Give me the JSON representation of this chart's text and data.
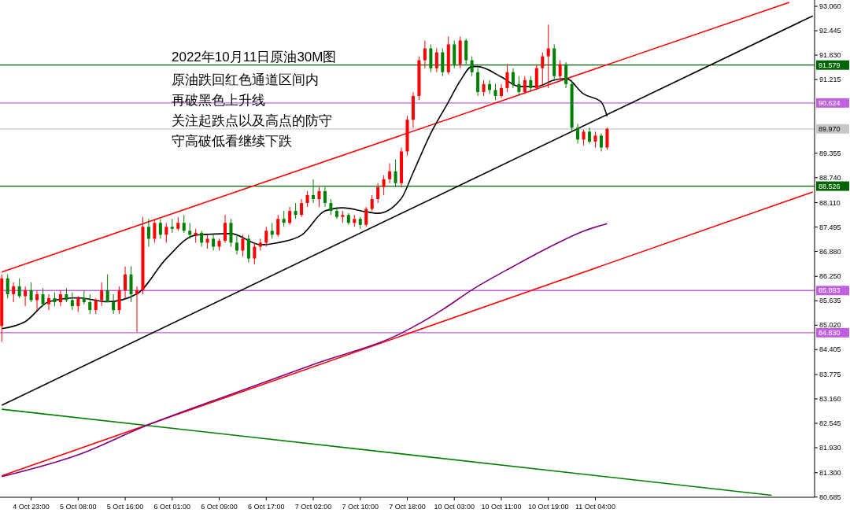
{
  "chart_data": {
    "type": "candlestick",
    "title": "2022年10月11日原油30M图",
    "annotations": [
      "原油跌回红色通道区间内",
      "再破黑色上升线",
      "关注起跌点以及高点的防守",
      "守高破低看继续下跌"
    ],
    "categories": [
      null,
      null,
      null,
      null,
      null,
      "4 Oct 23:00",
      null,
      null,
      null,
      null,
      null,
      null,
      null,
      "5 Oct 08:00",
      null,
      null,
      null,
      null,
      null,
      null,
      null,
      "5 Oct 16:00",
      null,
      null,
      null,
      null,
      null,
      null,
      null,
      "6 Oct 01:00",
      null,
      null,
      null,
      null,
      null,
      null,
      null,
      "6 Oct 09:00",
      null,
      null,
      null,
      null,
      null,
      null,
      null,
      "6 Oct 17:00",
      null,
      null,
      null,
      null,
      null,
      null,
      null,
      "7 Oct 02:00",
      null,
      null,
      null,
      null,
      null,
      null,
      null,
      "7 Oct 10:00",
      null,
      null,
      null,
      null,
      null,
      null,
      null,
      "7 Oct 18:00",
      null,
      null,
      null,
      null,
      null,
      null,
      null,
      "10 Oct 03:00",
      null,
      null,
      null,
      null,
      null,
      null,
      null,
      "10 Oct 11:00",
      null,
      null,
      null,
      null,
      null,
      null,
      null,
      "10 Oct 19:00",
      null,
      null,
      null,
      null,
      null,
      null,
      null,
      "11 Oct 04:00",
      null,
      null,
      null,
      null,
      null,
      null,
      null,
      null,
      null,
      null,
      null,
      null,
      null,
      null,
      null,
      null,
      null,
      null,
      null,
      null,
      null,
      null,
      null,
      null,
      null,
      null,
      null,
      null,
      null,
      null,
      null,
      null,
      null,
      null,
      null,
      null,
      null
    ],
    "colors": [
      "#ff0000",
      "#008000",
      "#ff0000",
      "#008000",
      "#ff0000",
      "#008000",
      "#ff0000",
      "#008000",
      "#ff0000",
      "#008000",
      "#ff0000",
      "#008000",
      "#008000",
      "#ff0000",
      "#008000",
      "#008000",
      "#ff0000",
      "#ff0000",
      "#008000",
      "#008000",
      "#ff0000",
      "#ff0000",
      "#008000",
      "#ff0000",
      "#ff0000",
      "#008000",
      "#ff0000",
      "#008000",
      "#ff0000",
      "#008000",
      "#ff0000",
      "#008000",
      "#008000",
      "#ff0000",
      "#008000",
      "#ff0000",
      "#008000",
      "#ff0000",
      "#ff0000",
      "#008000",
      "#008000",
      "#ff0000",
      "#008000",
      "#ff0000",
      "#ff0000",
      "#ff0000",
      "#008000",
      "#ff0000",
      "#008000",
      "#ff0000",
      "#008000",
      "#ff0000",
      "#ff0000",
      "#008000",
      "#ff0000",
      "#008000",
      "#008000",
      "#008000",
      "#ff0000",
      "#008000",
      "#ff0000",
      "#008000",
      "#ff0000",
      "#ff0000",
      "#ff0000",
      "#ff0000",
      "#ff0000",
      "#008000",
      "#ff0000",
      "#ff0000",
      "#ff0000",
      "#ff0000",
      "#ff0000",
      "#008000",
      "#ff0000",
      "#008000",
      "#ff0000",
      "#008000",
      "#ff0000",
      "#008000",
      "#008000",
      "#008000",
      "#ff0000",
      "#008000",
      "#008000",
      "#ff0000",
      "#ff0000",
      "#008000",
      "#008000",
      "#ff0000",
      "#008000",
      "#ff0000",
      "#ff0000",
      "#ff0000",
      "#008000",
      "#ff0000",
      "#008000",
      "#008000",
      "#008000",
      "#ff0000",
      "#008000",
      "#ff0000",
      "#008000",
      "#ff0000",
      null,
      null,
      null,
      null,
      null,
      null,
      null,
      null,
      null,
      null,
      null,
      null,
      null,
      null,
      null,
      null,
      null,
      null,
      null,
      null,
      null,
      null,
      null,
      null,
      null,
      null,
      null,
      null,
      null,
      null,
      null,
      null,
      null,
      null,
      null
    ],
    "ohlc": [
      [
        85.0,
        86.3,
        84.6,
        86.2
      ],
      [
        86.2,
        86.3,
        85.7,
        85.8
      ],
      [
        85.8,
        86.1,
        85.6,
        86.0
      ],
      [
        86.0,
        86.2,
        85.7,
        85.75
      ],
      [
        85.75,
        86.0,
        85.5,
        85.9
      ],
      [
        85.9,
        86.1,
        85.6,
        85.65
      ],
      [
        85.65,
        85.9,
        85.4,
        85.8
      ],
      [
        85.8,
        85.95,
        85.5,
        85.55
      ],
      [
        85.55,
        85.8,
        85.4,
        85.7
      ],
      [
        85.7,
        85.85,
        85.5,
        85.6
      ],
      [
        85.6,
        85.9,
        85.5,
        85.8
      ],
      [
        85.8,
        85.95,
        85.6,
        85.65
      ],
      [
        85.65,
        85.85,
        85.4,
        85.5
      ],
      [
        85.5,
        85.75,
        85.35,
        85.7
      ],
      [
        85.7,
        85.9,
        85.55,
        85.6
      ],
      [
        85.6,
        85.8,
        85.3,
        85.4
      ],
      [
        85.4,
        85.7,
        85.3,
        85.65
      ],
      [
        85.65,
        86.1,
        85.5,
        85.9
      ],
      [
        85.9,
        86.3,
        85.6,
        85.6
      ],
      [
        85.6,
        85.8,
        85.3,
        85.4
      ],
      [
        85.4,
        86.0,
        85.3,
        85.9
      ],
      [
        85.9,
        86.5,
        85.7,
        86.3
      ],
      [
        86.3,
        86.5,
        85.6,
        85.8
      ],
      [
        85.8,
        86.0,
        84.85,
        85.9
      ],
      [
        85.9,
        87.75,
        85.8,
        87.5
      ],
      [
        87.5,
        87.7,
        87.0,
        87.2
      ],
      [
        87.2,
        87.7,
        87.1,
        87.6
      ],
      [
        87.6,
        87.7,
        87.2,
        87.3
      ],
      [
        87.3,
        87.6,
        87.1,
        87.5
      ],
      [
        87.5,
        87.7,
        87.35,
        87.45
      ],
      [
        87.45,
        87.75,
        87.4,
        87.6
      ],
      [
        87.6,
        87.8,
        87.35,
        87.4
      ],
      [
        87.4,
        87.6,
        87.2,
        87.3
      ],
      [
        87.3,
        87.45,
        87.1,
        87.35
      ],
      [
        87.35,
        87.4,
        87.0,
        87.1
      ],
      [
        87.1,
        87.3,
        86.95,
        87.2
      ],
      [
        87.2,
        87.3,
        86.9,
        87.0
      ],
      [
        87.0,
        87.2,
        86.9,
        87.15
      ],
      [
        87.15,
        87.8,
        87.1,
        87.6
      ],
      [
        87.6,
        87.7,
        87.0,
        87.1
      ],
      [
        87.1,
        87.3,
        86.8,
        86.9
      ],
      [
        86.9,
        87.3,
        86.75,
        87.2
      ],
      [
        87.2,
        87.3,
        86.6,
        86.7
      ],
      [
        86.7,
        87.1,
        86.55,
        87.0
      ],
      [
        87.0,
        87.2,
        86.9,
        87.1
      ],
      [
        87.1,
        87.5,
        87.0,
        87.4
      ],
      [
        87.4,
        87.6,
        87.2,
        87.3
      ],
      [
        87.3,
        87.8,
        87.25,
        87.7
      ],
      [
        87.7,
        87.9,
        87.5,
        87.6
      ],
      [
        87.6,
        88.0,
        87.55,
        87.9
      ],
      [
        87.9,
        88.1,
        87.7,
        87.8
      ],
      [
        87.8,
        88.2,
        87.75,
        88.1
      ],
      [
        88.1,
        88.4,
        88.0,
        88.3
      ],
      [
        88.3,
        88.7,
        88.1,
        88.2
      ],
      [
        88.2,
        88.5,
        88.0,
        88.4
      ],
      [
        88.4,
        88.5,
        88.0,
        88.1
      ],
      [
        88.1,
        88.2,
        87.8,
        87.9
      ],
      [
        87.9,
        88.0,
        87.7,
        87.75
      ],
      [
        87.75,
        87.9,
        87.6,
        87.8
      ],
      [
        87.8,
        87.85,
        87.55,
        87.6
      ],
      [
        87.6,
        87.8,
        87.5,
        87.7
      ],
      [
        87.7,
        87.75,
        87.45,
        87.55
      ],
      [
        87.55,
        88.0,
        87.5,
        87.95
      ],
      [
        87.95,
        88.3,
        87.9,
        88.2
      ],
      [
        88.2,
        88.6,
        88.1,
        88.5
      ],
      [
        88.5,
        88.8,
        88.3,
        88.7
      ],
      [
        88.7,
        89.1,
        88.6,
        88.9
      ],
      [
        88.9,
        89.2,
        88.5,
        88.6
      ],
      [
        88.6,
        89.5,
        88.5,
        89.4
      ],
      [
        89.4,
        90.3,
        89.3,
        90.2
      ],
      [
        90.2,
        90.9,
        90.0,
        90.8
      ],
      [
        90.8,
        91.8,
        90.7,
        91.7
      ],
      [
        91.7,
        92.2,
        91.5,
        92.0
      ],
      [
        92.0,
        92.1,
        91.4,
        91.5
      ],
      [
        91.5,
        92.0,
        91.4,
        91.9
      ],
      [
        91.9,
        92.0,
        91.3,
        91.4
      ],
      [
        91.4,
        92.3,
        91.35,
        92.1
      ],
      [
        92.1,
        92.2,
        91.5,
        91.6
      ],
      [
        91.6,
        92.3,
        91.5,
        92.2
      ],
      [
        92.2,
        92.25,
        91.6,
        91.7
      ],
      [
        91.7,
        91.8,
        91.3,
        91.4
      ],
      [
        91.4,
        91.5,
        90.8,
        90.9
      ],
      [
        90.9,
        91.2,
        90.8,
        91.1
      ],
      [
        91.1,
        91.2,
        90.85,
        90.95
      ],
      [
        90.95,
        91.1,
        90.7,
        90.8
      ],
      [
        90.8,
        91.1,
        90.75,
        91.0
      ],
      [
        91.0,
        91.6,
        90.9,
        91.4
      ],
      [
        91.4,
        91.5,
        91.0,
        91.1
      ],
      [
        91.1,
        91.3,
        90.8,
        90.9
      ],
      [
        90.9,
        91.3,
        90.85,
        91.2
      ],
      [
        91.2,
        91.3,
        90.9,
        91.0
      ],
      [
        91.0,
        91.6,
        90.95,
        91.5
      ],
      [
        91.5,
        91.9,
        91.1,
        91.8
      ],
      [
        91.8,
        92.6,
        91.0,
        92.0
      ],
      [
        92.0,
        92.1,
        91.2,
        91.3
      ],
      [
        91.3,
        91.7,
        91.2,
        91.6
      ],
      [
        91.6,
        91.65,
        91.0,
        91.1
      ],
      [
        91.1,
        91.2,
        89.9,
        90.0
      ],
      [
        90.0,
        90.1,
        89.6,
        89.7
      ],
      [
        89.7,
        89.95,
        89.55,
        89.9
      ],
      [
        89.9,
        90.0,
        89.6,
        89.65
      ],
      [
        89.65,
        89.9,
        89.5,
        89.8
      ],
      [
        89.8,
        89.85,
        89.4,
        89.5
      ],
      [
        89.5,
        90.0,
        89.45,
        89.97
      ],
      null,
      null,
      null,
      null,
      null,
      null,
      null,
      null,
      null,
      null,
      null,
      null,
      null,
      null,
      null,
      null,
      null,
      null,
      null,
      null,
      null,
      null,
      null,
      null,
      null,
      null,
      null,
      null,
      null,
      null,
      null,
      null,
      null,
      null,
      null
    ],
    "series": [
      {
        "type": "line",
        "color": "#ff0000",
        "values": [
          86.36,
          null,
          null,
          null,
          null,
          null,
          null,
          null,
          null,
          null,
          null,
          null,
          null,
          null,
          null,
          null,
          null,
          null,
          null,
          null,
          null,
          null,
          null,
          null,
          null,
          null,
          null,
          null,
          null,
          null,
          null,
          null,
          null,
          null,
          null,
          null,
          null,
          null,
          null,
          null,
          null,
          null,
          null,
          null,
          null,
          null,
          null,
          null,
          null,
          null,
          null,
          null,
          null,
          null,
          null,
          null,
          null,
          null,
          null,
          null,
          null,
          null,
          null,
          null,
          null,
          null,
          null,
          null,
          null,
          null,
          null,
          null,
          null,
          null,
          null,
          null,
          null,
          null,
          null,
          null,
          null,
          null,
          null,
          null,
          null,
          null,
          null,
          null,
          null,
          null,
          null,
          null,
          null,
          null,
          null,
          null,
          null,
          null,
          null,
          null,
          null,
          null,
          null,
          null,
          null,
          null,
          null,
          null,
          null,
          null,
          null,
          null,
          null,
          null,
          null,
          null,
          null,
          null,
          null,
          null,
          null,
          null,
          null,
          null,
          null,
          null,
          null,
          null,
          null,
          null,
          null,
          null,
          null,
          null,
          93.16,
          null,
          null,
          null,
          null
        ]
      },
      {
        "type": "line",
        "color": "#ff0000",
        "values": [
          81.22,
          null,
          null,
          null,
          null,
          null,
          null,
          null,
          null,
          null,
          null,
          null,
          null,
          null,
          null,
          null,
          null,
          null,
          null,
          null,
          null,
          null,
          null,
          null,
          null,
          null,
          null,
          null,
          null,
          null,
          null,
          null,
          null,
          null,
          null,
          null,
          null,
          null,
          null,
          null,
          null,
          null,
          null,
          null,
          null,
          null,
          null,
          null,
          null,
          null,
          null,
          null,
          null,
          null,
          null,
          null,
          null,
          null,
          null,
          null,
          null,
          null,
          null,
          null,
          null,
          null,
          null,
          null,
          null,
          null,
          null,
          null,
          null,
          null,
          null,
          null,
          null,
          null,
          null,
          null,
          null,
          null,
          null,
          null,
          null,
          null,
          null,
          null,
          null,
          null,
          null,
          null,
          null,
          null,
          null,
          null,
          null,
          null,
          null,
          null,
          null,
          null,
          null,
          null,
          null,
          null,
          null,
          null,
          null,
          null,
          null,
          null,
          null,
          null,
          null,
          null,
          null,
          null,
          null,
          null,
          null,
          null,
          null,
          null,
          null,
          null,
          null,
          null,
          null,
          null,
          null,
          null,
          null,
          null,
          null,
          null,
          null,
          null,
          88.38
        ]
      },
      {
        "type": "line",
        "color": "#000000",
        "values": [
          83.0,
          null,
          null,
          null,
          null,
          null,
          null,
          null,
          null,
          null,
          null,
          null,
          null,
          null,
          null,
          null,
          null,
          null,
          null,
          null,
          null,
          null,
          null,
          null,
          null,
          null,
          null,
          null,
          null,
          null,
          null,
          null,
          null,
          null,
          null,
          null,
          null,
          null,
          null,
          null,
          null,
          null,
          null,
          null,
          null,
          null,
          null,
          null,
          null,
          null,
          null,
          null,
          null,
          null,
          null,
          null,
          null,
          null,
          null,
          null,
          null,
          null,
          null,
          null,
          null,
          null,
          null,
          null,
          null,
          null,
          null,
          null,
          null,
          null,
          null,
          null,
          null,
          null,
          null,
          null,
          null,
          null,
          null,
          null,
          null,
          null,
          null,
          null,
          null,
          null,
          null,
          null,
          null,
          null,
          null,
          null,
          null,
          null,
          null,
          null,
          null,
          null,
          null,
          null,
          null,
          null,
          null,
          null,
          null,
          null,
          null,
          null,
          null,
          null,
          null,
          null,
          null,
          null,
          null,
          null,
          null,
          null,
          null,
          null,
          null,
          null,
          null,
          null,
          null,
          null,
          null,
          null,
          null,
          null,
          null,
          null,
          null,
          null,
          92.82
        ]
      },
      {
        "type": "line",
        "color": "#008000",
        "values": [
          82.9,
          null,
          null,
          null,
          null,
          null,
          null,
          null,
          null,
          null,
          null,
          null,
          null,
          null,
          null,
          null,
          null,
          null,
          null,
          null,
          null,
          null,
          null,
          null,
          null,
          null,
          null,
          null,
          null,
          null,
          null,
          null,
          null,
          null,
          null,
          null,
          null,
          null,
          null,
          null,
          null,
          null,
          null,
          null,
          null,
          null,
          null,
          null,
          null,
          null,
          null,
          null,
          null,
          null,
          null,
          null,
          null,
          null,
          null,
          null,
          null,
          null,
          null,
          null,
          null,
          null,
          null,
          null,
          null,
          null,
          null,
          null,
          null,
          null,
          null,
          null,
          null,
          null,
          null,
          null,
          null,
          null,
          null,
          null,
          null,
          null,
          null,
          null,
          null,
          null,
          null,
          null,
          null,
          null,
          null,
          null,
          null,
          null,
          null,
          null,
          null,
          null,
          null,
          null,
          null,
          null,
          null,
          null,
          null,
          null,
          null,
          null,
          null,
          null,
          null,
          null,
          null,
          null,
          null,
          null,
          null,
          null,
          null,
          null,
          null,
          null,
          null,
          null,
          null,
          null,
          null,
          80.73,
          null,
          null,
          null,
          null,
          null,
          null,
          null
        ]
      },
      {
        "type": "line",
        "color": "#800080",
        "values": [
          81.2,
          null,
          null,
          null,
          null,
          null,
          null,
          null,
          null,
          null,
          null,
          null,
          null,
          81.75,
          null,
          null,
          null,
          null,
          null,
          null,
          null,
          null,
          null,
          null,
          82.45,
          null,
          null,
          null,
          null,
          null,
          null,
          null,
          null,
          null,
          null,
          null,
          null,
          null,
          null,
          null,
          83.33,
          null,
          null,
          null,
          null,
          null,
          null,
          null,
          null,
          null,
          null,
          null,
          null,
          84.03,
          null,
          null,
          null,
          null,
          null,
          null,
          null,
          null,
          null,
          null,
          null,
          null,
          null,
          null,
          84.82,
          null,
          null,
          null,
          null,
          null,
          null,
          85.41,
          null,
          null,
          null,
          null,
          85.91,
          null,
          null,
          null,
          null,
          null,
          null,
          86.5,
          null,
          null,
          null,
          null,
          null,
          null,
          87.05,
          null,
          null,
          null,
          null,
          87.39,
          null,
          null,
          null,
          87.58,
          null,
          null,
          null,
          null,
          null,
          null,
          null,
          null,
          null,
          null,
          null,
          null,
          null,
          null,
          null,
          null,
          null,
          null,
          null,
          null,
          null,
          null,
          null,
          null,
          null,
          null,
          null,
          null,
          null,
          null,
          null,
          null,
          null,
          null,
          null
        ]
      },
      {
        "type": "line",
        "color": "#000000",
        "values": [
          84.93,
          null,
          null,
          null,
          85.11,
          null,
          null,
          null,
          85.61,
          null,
          null,
          null,
          null,
          85.71,
          null,
          null,
          null,
          null,
          85.61,
          null,
          null,
          null,
          null,
          85.81,
          null,
          null,
          null,
          null,
          86.7,
          null,
          null,
          null,
          null,
          87.29,
          null,
          null,
          null,
          null,
          null,
          87.33,
          null,
          null,
          null,
          null,
          87.05,
          null,
          null,
          87.1,
          null,
          null,
          null,
          87.29,
          null,
          null,
          null,
          87.9,
          null,
          null,
          87.98,
          null,
          null,
          null,
          87.88,
          null,
          87.84,
          null,
          null,
          null,
          88.22,
          null,
          88.87,
          null,
          null,
          89.86,
          null,
          null,
          90.65,
          null,
          91.18,
          null,
          91.54,
          91.54,
          null,
          null,
          null,
          91.28,
          null,
          null,
          91.04,
          null,
          null,
          91.04,
          null,
          null,
          91.2,
          null,
          91.24,
          null,
          null,
          90.85,
          null,
          null,
          90.65,
          90.29,
          null,
          null,
          null,
          null,
          null,
          null,
          null,
          null,
          null,
          null,
          null,
          null,
          null,
          null,
          null,
          null,
          null,
          null,
          null,
          null,
          null,
          null,
          null,
          null,
          null,
          null,
          null,
          null,
          null,
          null,
          null,
          null,
          null,
          null,
          null
        ]
      }
    ],
    "ref_lines": [
      {
        "axis": "y",
        "value": 91.579,
        "label": "91.579",
        "color": "#006400"
      },
      {
        "axis": "y",
        "value": 90.624,
        "label": "90.624",
        "color": "#c060e0"
      },
      {
        "axis": "y",
        "value": 89.97,
        "label": "89.970",
        "color": "#c8c8c8"
      },
      {
        "axis": "y",
        "value": 88.526,
        "label": "88.526",
        "color": "#006400"
      },
      {
        "axis": "y",
        "value": 85.893,
        "label": "85.893",
        "color": "#c060e0"
      },
      {
        "axis": "y",
        "value": 84.83,
        "label": "84.830",
        "color": "#c060e0"
      }
    ],
    "ylim": [
      80.68,
      93.22
    ],
    "yticks": [
      {
        "value": 93.06,
        "label": "93.060"
      },
      {
        "value": 92.445,
        "label": "92.445"
      },
      {
        "value": 91.83,
        "label": "91.830"
      },
      {
        "value": 91.215,
        "label": "91.215"
      },
      {
        "value": 89.355,
        "label": "89.355"
      },
      {
        "value": 88.74,
        "label": "88.740"
      },
      {
        "value": 88.11,
        "label": "88.110"
      },
      {
        "value": 87.495,
        "label": "87.495"
      },
      {
        "value": 86.88,
        "label": "86.880"
      },
      {
        "value": 86.25,
        "label": "86.250"
      },
      {
        "value": 85.635,
        "label": "85.635"
      },
      {
        "value": 85.02,
        "label": "85.020"
      },
      {
        "value": 84.405,
        "label": "84.405"
      },
      {
        "value": 83.775,
        "label": "83.775"
      },
      {
        "value": 83.16,
        "label": "83.160"
      },
      {
        "value": 82.545,
        "label": "82.545"
      },
      {
        "value": 81.93,
        "label": "81.930"
      },
      {
        "value": 81.3,
        "label": "81.300"
      },
      {
        "value": 80.685,
        "label": "80.685"
      }
    ],
    "grid": false
  }
}
